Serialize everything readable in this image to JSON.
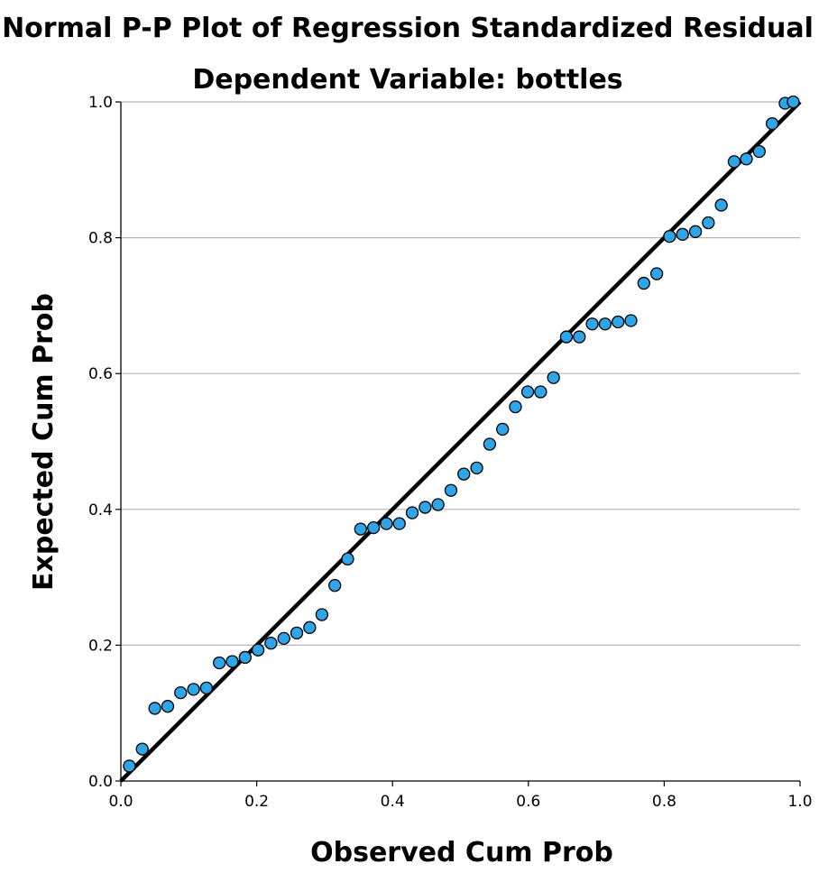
{
  "chart_data": {
    "type": "scatter",
    "title": "Normal P-P Plot of Regression Standardized Residual",
    "subtitle": "Dependent Variable: bottles",
    "xlabel": "Observed Cum Prob",
    "ylabel": "Expected Cum Prob",
    "xlim": [
      0.0,
      1.0
    ],
    "ylim": [
      0.0,
      1.0
    ],
    "x_ticks": [
      "0.0",
      "0.2",
      "0.4",
      "0.6",
      "0.8",
      "1.0"
    ],
    "y_ticks": [
      "0.0",
      "0.2",
      "0.4",
      "0.6",
      "0.8",
      "1.0"
    ],
    "grid": "horizontal",
    "reference_line": [
      [
        0,
        0
      ],
      [
        1,
        1
      ]
    ],
    "marker_color": "#2fa4e7",
    "series": [
      {
        "points": [
          [
            0.0125,
            0.022
          ],
          [
            0.0315,
            0.047
          ],
          [
            0.05,
            0.107
          ],
          [
            0.069,
            0.11
          ],
          [
            0.088,
            0.13
          ],
          [
            0.107,
            0.135
          ],
          [
            0.126,
            0.137
          ],
          [
            0.145,
            0.174
          ],
          [
            0.164,
            0.176
          ],
          [
            0.183,
            0.182
          ],
          [
            0.202,
            0.193
          ],
          [
            0.221,
            0.203
          ],
          [
            0.24,
            0.21
          ],
          [
            0.259,
            0.218
          ],
          [
            0.278,
            0.226
          ],
          [
            0.296,
            0.245
          ],
          [
            0.315,
            0.288
          ],
          [
            0.334,
            0.327
          ],
          [
            0.353,
            0.371
          ],
          [
            0.372,
            0.373
          ],
          [
            0.391,
            0.379
          ],
          [
            0.41,
            0.379
          ],
          [
            0.429,
            0.395
          ],
          [
            0.448,
            0.403
          ],
          [
            0.467,
            0.407
          ],
          [
            0.486,
            0.428
          ],
          [
            0.505,
            0.452
          ],
          [
            0.524,
            0.461
          ],
          [
            0.543,
            0.496
          ],
          [
            0.562,
            0.518
          ],
          [
            0.581,
            0.551
          ],
          [
            0.599,
            0.573
          ],
          [
            0.618,
            0.573
          ],
          [
            0.637,
            0.594
          ],
          [
            0.656,
            0.654
          ],
          [
            0.675,
            0.654
          ],
          [
            0.694,
            0.673
          ],
          [
            0.713,
            0.673
          ],
          [
            0.732,
            0.676
          ],
          [
            0.751,
            0.678
          ],
          [
            0.77,
            0.733
          ],
          [
            0.789,
            0.747
          ],
          [
            0.808,
            0.802
          ],
          [
            0.827,
            0.805
          ],
          [
            0.846,
            0.809
          ],
          [
            0.865,
            0.822
          ],
          [
            0.884,
            0.848
          ],
          [
            0.903,
            0.912
          ],
          [
            0.921,
            0.916
          ],
          [
            0.94,
            0.927
          ],
          [
            0.959,
            0.968
          ],
          [
            0.978,
            0.998
          ],
          [
            0.99,
            1.0
          ]
        ]
      }
    ]
  }
}
